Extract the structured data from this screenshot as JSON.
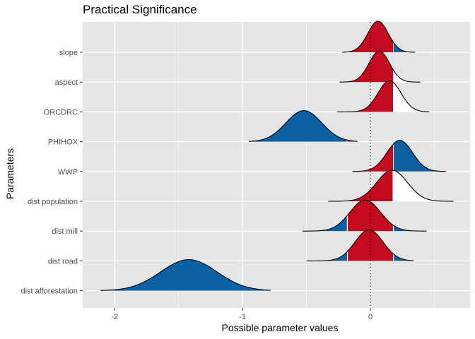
{
  "chart_data": {
    "type": "area",
    "title": "Practical Significance",
    "xlabel": "Possible parameter values",
    "ylabel": "Parameters",
    "xlim": [
      -2.25,
      0.78
    ],
    "x_ticks": [
      -2,
      -1,
      0
    ],
    "x_tick_labels": [
      "-2",
      "-1",
      "0"
    ],
    "rope": [
      -0.18,
      0.18
    ],
    "reference_line": 0,
    "grid": true,
    "colors": {
      "panel_bg": "#e5e5e5",
      "grid": "#ffffff",
      "rope_fill": "#c40a1e",
      "outside_fill": "#0b61a4",
      "outline": "#000000"
    },
    "series": [
      {
        "name": "slope",
        "mean": 0.06,
        "sd": 0.08,
        "min": -0.22,
        "max": 0.35,
        "height": 1.0,
        "show_outside_fill": true
      },
      {
        "name": "aspect",
        "mean": 0.07,
        "sd": 0.08,
        "min": -0.24,
        "max": 0.39,
        "height": 1.0,
        "show_outside_fill": false
      },
      {
        "name": "ORCDRC",
        "mean": 0.15,
        "sd": 0.09,
        "min": -0.26,
        "max": 0.46,
        "height": 1.0,
        "show_outside_fill": false
      },
      {
        "name": "PHIHOX",
        "mean": -0.52,
        "sd": 0.14,
        "min": -0.95,
        "max": -0.1,
        "height": 1.0,
        "show_outside_fill": true
      },
      {
        "name": "WWP",
        "mean": 0.23,
        "sd": 0.1,
        "min": -0.14,
        "max": 0.59,
        "height": 1.0,
        "show_outside_fill": true
      },
      {
        "name": "dist population",
        "mean": 0.17,
        "sd": 0.12,
        "min": -0.33,
        "max": 0.65,
        "height": 1.0,
        "show_outside_fill": false
      },
      {
        "name": "dist mill",
        "mean": -0.04,
        "sd": 0.12,
        "min": -0.53,
        "max": 0.44,
        "height": 1.0,
        "show_outside_fill": true
      },
      {
        "name": "dist road",
        "mean": -0.01,
        "sd": 0.11,
        "min": -0.5,
        "max": 0.34,
        "height": 1.0,
        "show_outside_fill": true
      },
      {
        "name": "dist afforestation",
        "mean": -1.42,
        "sd": 0.22,
        "min": -2.11,
        "max": -0.78,
        "height": 1.0,
        "show_outside_fill": true
      }
    ]
  }
}
